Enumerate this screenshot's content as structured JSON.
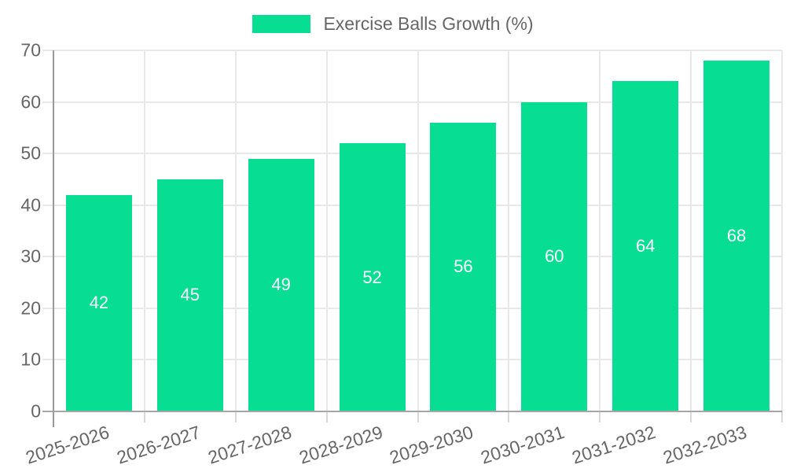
{
  "chart_data": {
    "type": "bar",
    "title": "Exercise Balls Growth (%)",
    "categories": [
      "2025-2026",
      "2026-2027",
      "2027-2028",
      "2028-2029",
      "2029-2030",
      "2030-2031",
      "2031-2032",
      "2032-2033"
    ],
    "values": [
      42,
      45,
      49,
      52,
      56,
      60,
      64,
      68
    ],
    "xlabel": "",
    "ylabel": "",
    "ylim": [
      0,
      70
    ],
    "ytick_step": 10,
    "grid": true,
    "legend_position": "top-center",
    "bar_labels_shown": true,
    "colors": {
      "bar": "#07DD93",
      "bar_label": "#ffffff",
      "axis_text": "#666666",
      "grid_line": "#e8e8e8",
      "axis_line": "#999999",
      "baseline": "#a6a6a6",
      "minor_tick": "#d9d9d9",
      "background": "#ffffff"
    }
  }
}
